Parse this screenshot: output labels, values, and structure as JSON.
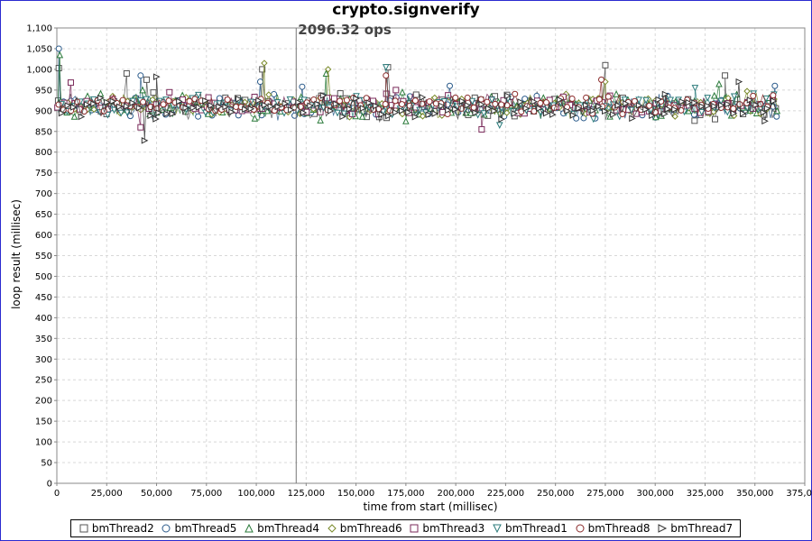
{
  "chart_data": {
    "type": "scatter",
    "title": "crypto.signverify",
    "xlabel": "time from start (millisec)",
    "ylabel": "loop result (millisec)",
    "xlim": [
      0,
      375000
    ],
    "ylim": [
      0,
      1100
    ],
    "x_ticks": [
      "0",
      "25,000",
      "50,000",
      "75,000",
      "100,000",
      "125,000",
      "150,000",
      "175,000",
      "200,000",
      "225,000",
      "250,000",
      "275,000",
      "300,000",
      "325,000",
      "350,000",
      "375,000"
    ],
    "y_ticks": [
      "0",
      "50",
      "100",
      "150",
      "200",
      "250",
      "300",
      "350",
      "400",
      "450",
      "500",
      "550",
      "600",
      "650",
      "700",
      "750",
      "800",
      "850",
      "900",
      "950",
      "1,000",
      "1,050",
      "1,100"
    ],
    "grid": true,
    "legend_position": "bottom",
    "annotation": {
      "text": "2096.32 ops",
      "x": 120000
    },
    "series": [
      {
        "name": "bmThread2",
        "marker": "square",
        "color": "#555555",
        "mean": 912,
        "spread": 22,
        "outliers": [
          [
            1000,
            1003
          ],
          [
            35000,
            990
          ],
          [
            45000,
            975
          ],
          [
            103000,
            1000
          ],
          [
            166000,
            1005
          ],
          [
            275000,
            1010
          ],
          [
            335000,
            985
          ]
        ]
      },
      {
        "name": "bmThread5",
        "marker": "circle",
        "color": "#2a5a8a",
        "mean": 910,
        "spread": 20,
        "outliers": [
          [
            1000,
            1050
          ],
          [
            42000,
            985
          ],
          [
            102000,
            970
          ],
          [
            123000,
            958
          ],
          [
            197000,
            960
          ],
          [
            360000,
            960
          ]
        ]
      },
      {
        "name": "bmThread4",
        "marker": "triangle-up",
        "color": "#2a7a3a",
        "mean": 908,
        "spread": 22,
        "outliers": [
          [
            1500,
            1035
          ],
          [
            43000,
            950
          ],
          [
            135000,
            990
          ],
          [
            175000,
            875
          ],
          [
            332000,
            965
          ]
        ]
      },
      {
        "name": "bmThread6",
        "marker": "diamond",
        "color": "#7a8a2a",
        "mean": 910,
        "spread": 22,
        "outliers": [
          [
            104000,
            1015
          ],
          [
            136000,
            1000
          ],
          [
            275000,
            970
          ]
        ]
      },
      {
        "name": "bmThread3",
        "marker": "square",
        "color": "#7a2a5a",
        "mean": 915,
        "spread": 18,
        "outliers": [
          [
            7000,
            968
          ],
          [
            42000,
            860
          ],
          [
            170000,
            950
          ],
          [
            213000,
            855
          ]
        ]
      },
      {
        "name": "bmThread1",
        "marker": "triangle-down",
        "color": "#2a7a7a",
        "mean": 910,
        "spread": 20,
        "outliers": [
          [
            165000,
            1005
          ],
          [
            222000,
            865
          ],
          [
            320000,
            955
          ]
        ]
      },
      {
        "name": "bmThread8",
        "marker": "circle",
        "color": "#8a2a2a",
        "mean": 915,
        "spread": 16,
        "outliers": [
          [
            273000,
            975
          ],
          [
            165000,
            985
          ]
        ]
      },
      {
        "name": "bmThread7",
        "marker": "triangle-right",
        "color": "#333333",
        "mean": 908,
        "spread": 20,
        "outliers": [
          [
            44000,
            828
          ],
          [
            50000,
            982
          ],
          [
            305000,
            940
          ],
          [
            342000,
            970
          ],
          [
            355000,
            875
          ]
        ]
      }
    ],
    "x_range_data": [
      0,
      362000
    ],
    "points_per_series": 220
  }
}
